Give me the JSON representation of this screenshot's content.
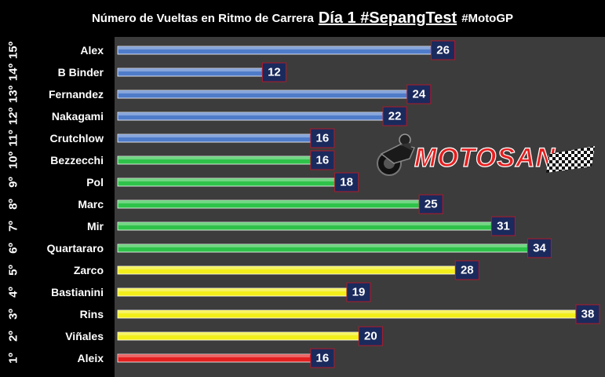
{
  "title": {
    "prefix": "Número de Vueltas en Ritmo de Carrera",
    "highlight": "Día 1 #SepangTest",
    "tag": "#MotoGP"
  },
  "logo_text": "MOTOSAN",
  "colors": {
    "background": "#000000",
    "plot_bg": "#3c3c3c",
    "label_box": "#1b2a5c",
    "blue": "#4f7cc9",
    "green": "#2fc24a",
    "yellow": "#f2ee1a",
    "red": "#e41f1f"
  },
  "chart_data": {
    "type": "bar",
    "orientation": "horizontal",
    "positions": [
      "15º",
      "14º",
      "13º",
      "12º",
      "11º",
      "10º",
      "9º",
      "8º",
      "7º",
      "6º",
      "5º",
      "4º",
      "3º",
      "2º",
      "1º"
    ],
    "categories": [
      "Alex",
      "B Binder",
      "Fernandez",
      "Nakagami",
      "Crutchlow",
      "Bezzecchi",
      "Pol",
      "Marc",
      "Mir",
      "Quartararo",
      "Zarco",
      "Bastianini",
      "Rins",
      "Viñales",
      "Aleix"
    ],
    "values": [
      26,
      12,
      24,
      22,
      16,
      16,
      18,
      25,
      31,
      34,
      28,
      19,
      38,
      20,
      16
    ],
    "bar_colors": [
      "blue",
      "blue",
      "blue",
      "blue",
      "blue",
      "green",
      "green",
      "green",
      "green",
      "green",
      "yellow",
      "yellow",
      "yellow",
      "yellow",
      "red"
    ],
    "xlim": [
      0,
      38
    ],
    "grid": false,
    "legend": "none"
  }
}
